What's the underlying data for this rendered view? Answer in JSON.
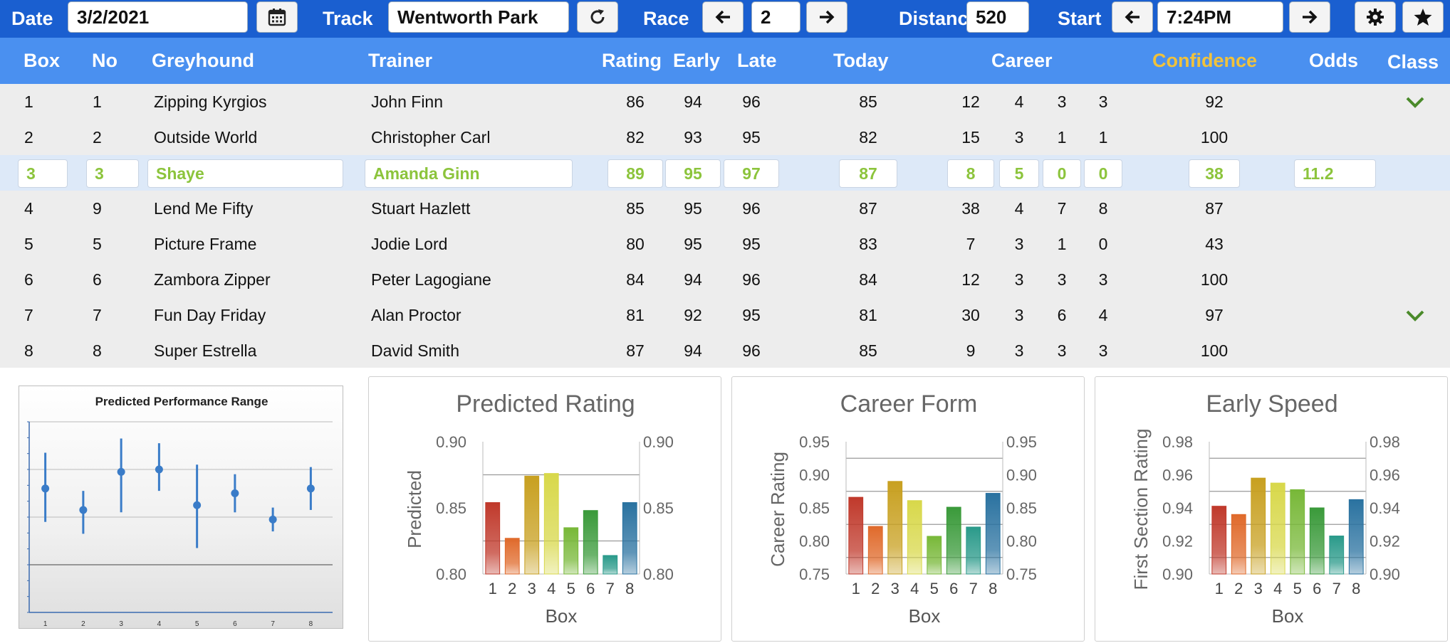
{
  "toolbar": {
    "date_label": "Date",
    "date_value": "3/2/2021",
    "calendar_icon": "calendar-icon",
    "track_label": "Track",
    "track_value": "Wentworth Park",
    "refresh_icon": "refresh-icon",
    "race_label": "Race",
    "race_value": "2",
    "distance_label": "Distance",
    "distance_value": "520",
    "start_label": "Start",
    "start_value": "7:24PM",
    "settings_icon": "gear-icon",
    "favorite_icon": "star-icon"
  },
  "table": {
    "headers": {
      "box": "Box",
      "no": "No",
      "greyhound": "Greyhound",
      "trainer": "Trainer",
      "rating": "Rating",
      "early": "Early",
      "late": "Late",
      "today": "Today",
      "career": "Career",
      "confidence": "Confidence",
      "odds": "Odds",
      "class": "Class"
    },
    "rows": [
      {
        "box": "1",
        "no": "1",
        "greyhound": "Zipping Kyrgios",
        "trainer": "John Finn",
        "rating": "86",
        "early": "94",
        "late": "96",
        "today": "85",
        "career": [
          "12",
          "4",
          "3",
          "3"
        ],
        "confidence": "92",
        "odds": "",
        "class_check": true
      },
      {
        "box": "2",
        "no": "2",
        "greyhound": "Outside World",
        "trainer": "Christopher Carl",
        "rating": "82",
        "early": "93",
        "late": "95",
        "today": "82",
        "career": [
          "15",
          "3",
          "1",
          "1"
        ],
        "confidence": "100",
        "odds": "",
        "class_check": false
      },
      {
        "box": "3",
        "no": "3",
        "greyhound": "Shaye",
        "trainer": "Amanda Ginn",
        "rating": "89",
        "early": "95",
        "late": "97",
        "today": "87",
        "career": [
          "8",
          "5",
          "0",
          "0"
        ],
        "confidence": "38",
        "odds": "11.2",
        "class_check": false,
        "selected": true
      },
      {
        "box": "4",
        "no": "9",
        "greyhound": "Lend Me Fifty",
        "trainer": "Stuart Hazlett",
        "rating": "85",
        "early": "95",
        "late": "96",
        "today": "87",
        "career": [
          "38",
          "4",
          "7",
          "8"
        ],
        "confidence": "87",
        "odds": "",
        "class_check": false
      },
      {
        "box": "5",
        "no": "5",
        "greyhound": "Picture Frame",
        "trainer": "Jodie Lord",
        "rating": "80",
        "early": "95",
        "late": "95",
        "today": "83",
        "career": [
          "7",
          "3",
          "1",
          "0"
        ],
        "confidence": "43",
        "odds": "",
        "class_check": false
      },
      {
        "box": "6",
        "no": "6",
        "greyhound": "Zambora Zipper",
        "trainer": "Peter Lagogiane",
        "rating": "84",
        "early": "94",
        "late": "96",
        "today": "84",
        "career": [
          "12",
          "3",
          "3",
          "3"
        ],
        "confidence": "100",
        "odds": "",
        "class_check": false
      },
      {
        "box": "7",
        "no": "7",
        "greyhound": "Fun Day Friday",
        "trainer": "Alan Proctor",
        "rating": "81",
        "early": "92",
        "late": "95",
        "today": "81",
        "career": [
          "30",
          "3",
          "6",
          "4"
        ],
        "confidence": "97",
        "odds": "",
        "class_check": true
      },
      {
        "box": "8",
        "no": "8",
        "greyhound": "Super Estrella",
        "trainer": "David Smith",
        "rating": "87",
        "early": "94",
        "late": "96",
        "today": "85",
        "career": [
          "9",
          "3",
          "3",
          "3"
        ],
        "confidence": "100",
        "odds": "",
        "class_check": false
      }
    ],
    "check_color": "#4a8a2a",
    "selected_text_color": "#8cc43c"
  },
  "chart_data": [
    {
      "type": "scatter",
      "title": "Predicted Performance Range",
      "categories": [
        "1",
        "2",
        "3",
        "4",
        "5",
        "6",
        "7",
        "8"
      ],
      "values": [
        0.52,
        0.43,
        0.59,
        0.6,
        0.45,
        0.5,
        0.39,
        0.52
      ],
      "low": [
        0.38,
        0.33,
        0.42,
        0.51,
        0.27,
        0.42,
        0.34,
        0.43
      ],
      "high": [
        0.67,
        0.51,
        0.73,
        0.71,
        0.62,
        0.58,
        0.44,
        0.61
      ],
      "ylim": [
        0,
        0.8
      ],
      "grid": true,
      "color": "#3a7cc8"
    },
    {
      "type": "bar",
      "title": "Predicted Rating",
      "xlabel": "Box",
      "ylabel": "Predicted",
      "categories": [
        "1",
        "2",
        "3",
        "4",
        "5",
        "6",
        "7",
        "8"
      ],
      "values": [
        0.854,
        0.827,
        0.874,
        0.876,
        0.835,
        0.848,
        0.814,
        0.854
      ],
      "ylim": [
        0.8,
        0.9
      ],
      "yticks": [
        "0.90",
        "0.85",
        "0.80"
      ],
      "grid": true
    },
    {
      "type": "bar",
      "title": "Career Form",
      "xlabel": "Box",
      "ylabel": "Career Rating",
      "categories": [
        "1",
        "2",
        "3",
        "4",
        "5",
        "6",
        "7",
        "8"
      ],
      "values": [
        0.866,
        0.822,
        0.89,
        0.861,
        0.807,
        0.851,
        0.821,
        0.872
      ],
      "ylim": [
        0.75,
        0.95
      ],
      "yticks": [
        "0.95",
        "0.90",
        "0.85",
        "0.80",
        "0.75"
      ],
      "grid": true
    },
    {
      "type": "bar",
      "title": "Early Speed",
      "xlabel": "Box",
      "ylabel": "First Section Rating",
      "categories": [
        "1",
        "2",
        "3",
        "4",
        "5",
        "6",
        "7",
        "8"
      ],
      "values": [
        0.941,
        0.936,
        0.958,
        0.955,
        0.951,
        0.94,
        0.923,
        0.945
      ],
      "ylim": [
        0.9,
        0.98
      ],
      "yticks": [
        "0.98",
        "0.96",
        "0.94",
        "0.92",
        "0.90"
      ],
      "grid": true
    }
  ],
  "bar_colors": [
    "#c0392b",
    "#e06a2b",
    "#c8a020",
    "#d8d84a",
    "#78b838",
    "#3a9a3a",
    "#2a9a8a",
    "#2a72a0"
  ]
}
